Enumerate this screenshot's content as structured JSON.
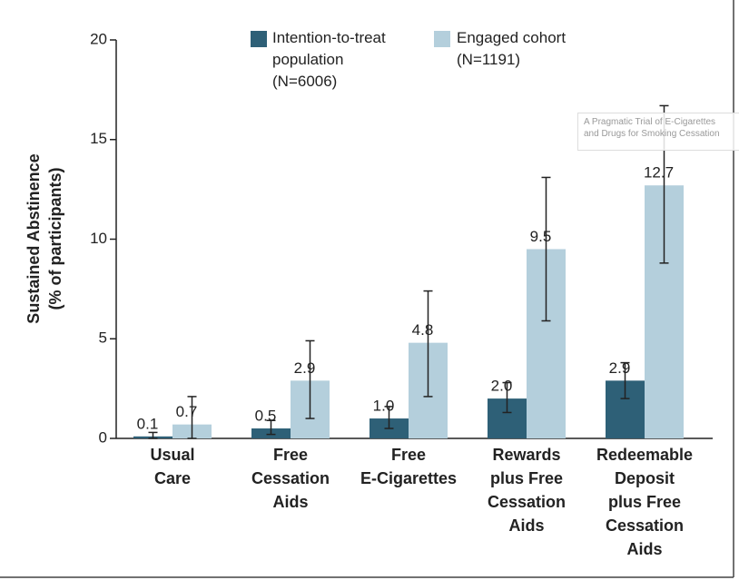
{
  "chart_data": {
    "type": "bar",
    "y_label": [
      "Sustained Abstinence",
      "(% of participants)"
    ],
    "categories": [
      [
        "Usual",
        "Care"
      ],
      [
        "Free",
        "Cessation",
        "Aids"
      ],
      [
        "Free",
        "E-Cigarettes"
      ],
      [
        "Rewards",
        "plus Free",
        "Cessation",
        "Aids"
      ],
      [
        "Redeemable",
        "Deposit",
        "plus Free",
        "Cessation",
        "Aids"
      ]
    ],
    "series": [
      {
        "name": "Intention-to-treat population (N=6006)",
        "color": "#2e6077",
        "values": [
          0.1,
          0.5,
          1.0,
          2.0,
          2.9
        ],
        "value_labels": [
          "0.1",
          "0.5",
          "1.0",
          "2.0",
          "2.9"
        ],
        "lower": [
          0.0,
          0.2,
          0.5,
          1.3,
          2.0
        ],
        "upper": [
          0.3,
          0.9,
          1.6,
          2.8,
          3.8
        ]
      },
      {
        "name": "Engaged cohort (N=1191)",
        "color": "#b4cfdc",
        "values": [
          0.7,
          2.9,
          4.8,
          9.5,
          12.7
        ],
        "value_labels": [
          "0.7",
          "2.9",
          "4.8",
          "9.5",
          "12.7"
        ],
        "lower": [
          0.0,
          1.0,
          2.1,
          5.9,
          8.8
        ],
        "upper": [
          2.1,
          4.9,
          7.4,
          13.1,
          16.7
        ]
      }
    ],
    "ylim": [
      0,
      20
    ],
    "yticks": [
      0,
      5,
      10,
      15,
      20
    ],
    "watermark": [
      "A Pragmatic Trial of E-Cigarettes",
      "and Drugs for Smoking Cessation"
    ]
  }
}
